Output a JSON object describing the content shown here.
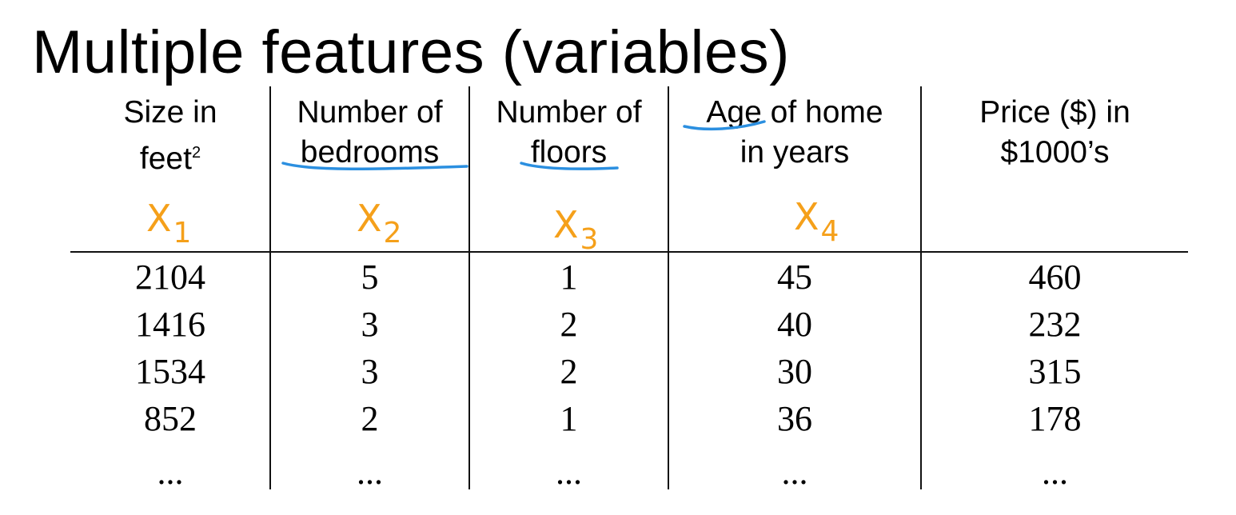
{
  "title": "Multiple features (variables)",
  "annotation_color": "#f5a01a",
  "underline_color": "#2b8fe0",
  "columns": [
    {
      "line1": "Size in",
      "line2": "feet",
      "sup": "2",
      "var": "X",
      "var_sub": "1"
    },
    {
      "line1": "Number of",
      "line2": "bedrooms",
      "var": "X",
      "var_sub": "2"
    },
    {
      "line1": "Number of",
      "line2": "floors",
      "var": "X",
      "var_sub": "3"
    },
    {
      "line1": "Age of home",
      "line2": "in years",
      "var": "X",
      "var_sub": "4"
    },
    {
      "line1": "Price ($) in",
      "line2": "$1000’s"
    }
  ],
  "rows": [
    [
      "2104",
      "5",
      "1",
      "45",
      "460"
    ],
    [
      "1416",
      "3",
      "2",
      "40",
      "232"
    ],
    [
      "1534",
      "3",
      "2",
      "30",
      "315"
    ],
    [
      "852",
      "2",
      "1",
      "36",
      "178"
    ],
    [
      "...",
      "...",
      "...",
      "...",
      "..."
    ]
  ]
}
